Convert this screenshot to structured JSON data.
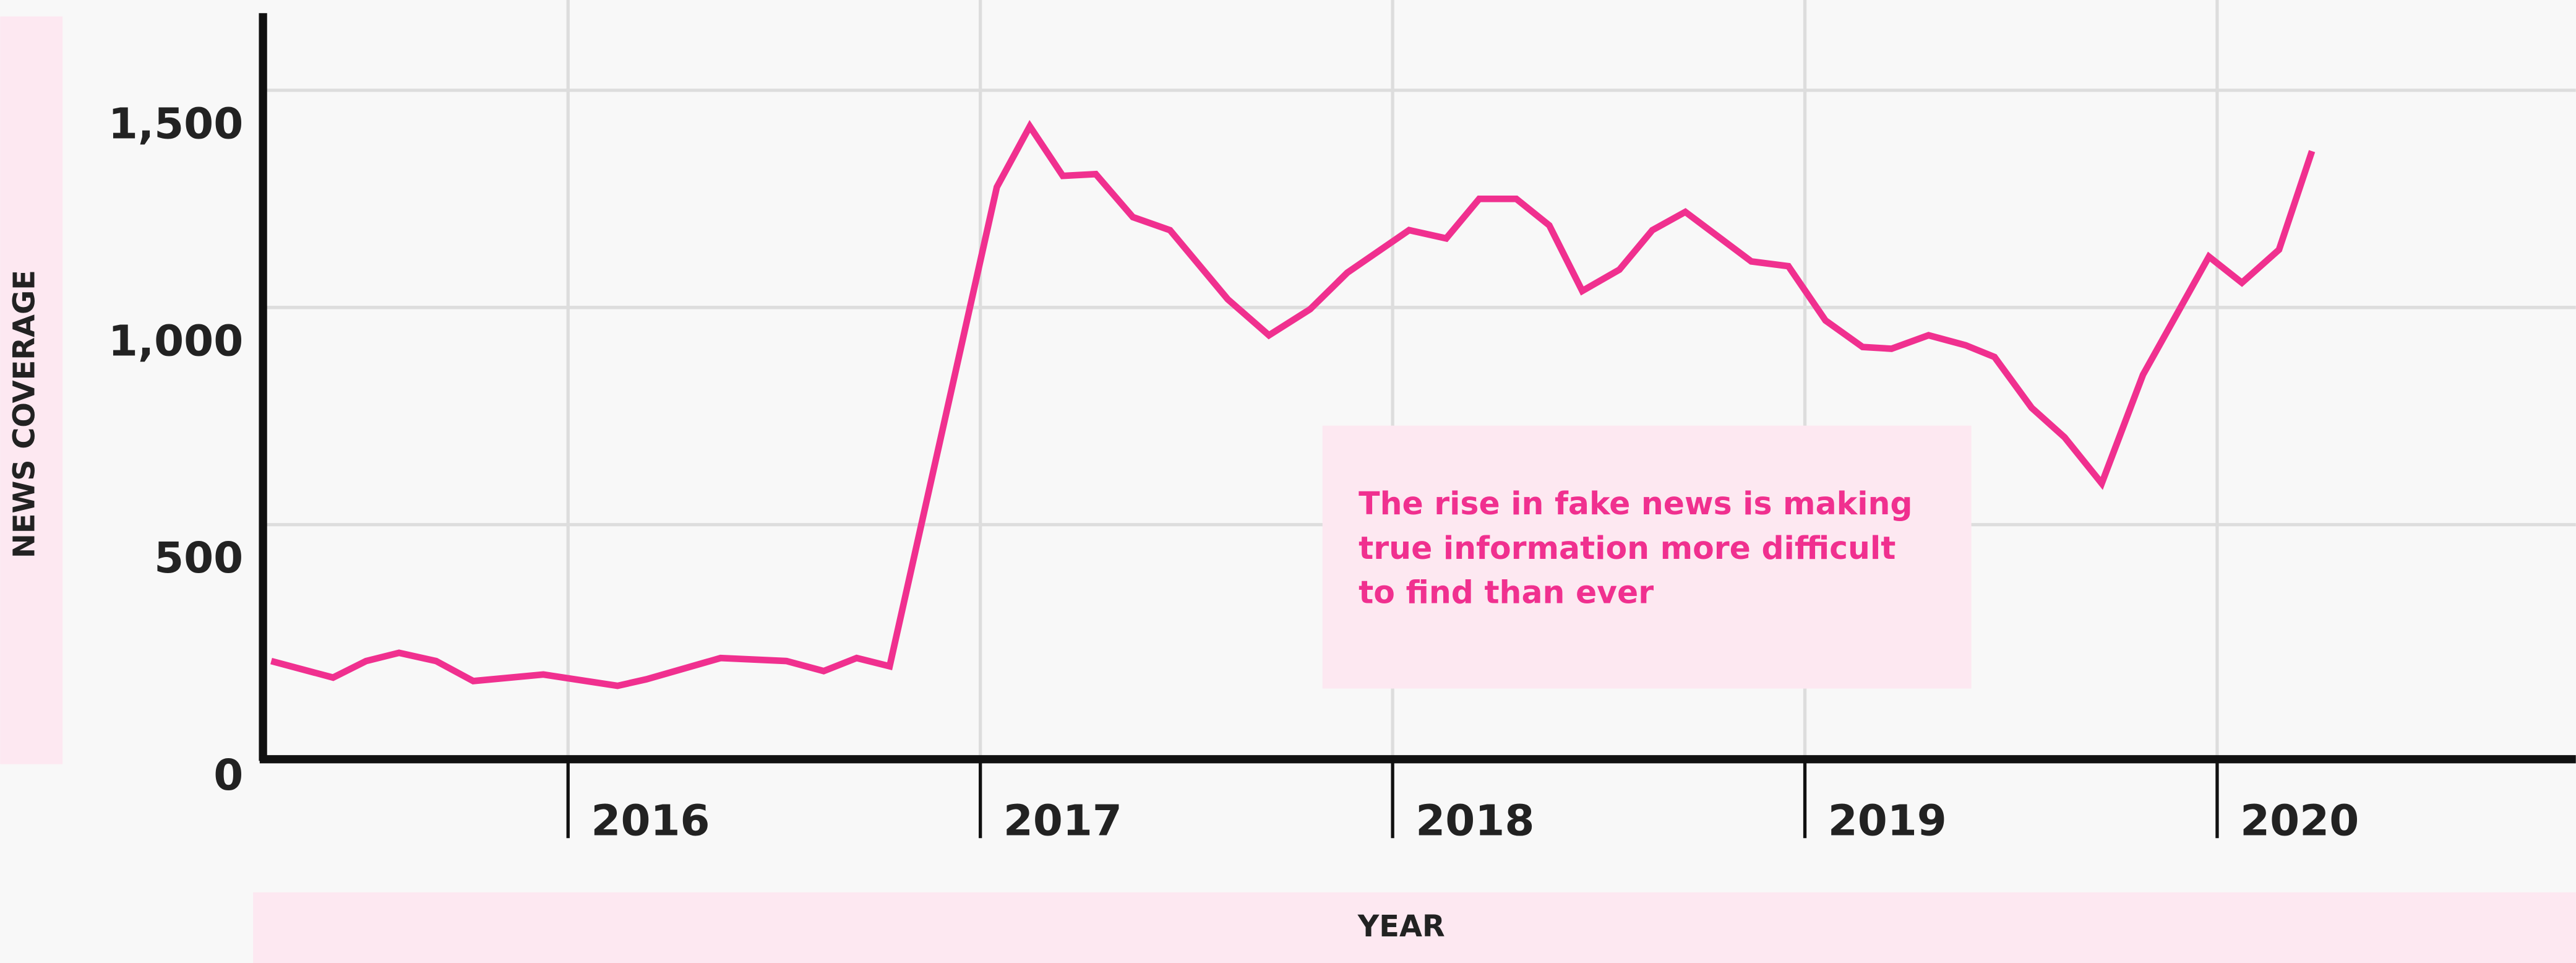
{
  "chart_data": {
    "type": "line",
    "xlabel": "YEAR",
    "ylabel": "NEWS COVERAGE",
    "annotation": "The rise in fake news is making true information more difficult to find than ever",
    "xlim": [
      2015.26,
      2020.87
    ],
    "xticks": [
      2016,
      2017,
      2018,
      2019,
      2020
    ],
    "ylim": [
      -40,
      1670
    ],
    "yticks": [
      0,
      {
        "value": 500,
        "label": "500"
      },
      {
        "value": 1000,
        "label": "1,000"
      },
      {
        "value": 1500,
        "label": "1,500"
      }
    ],
    "grid": true,
    "series": [
      {
        "color": "#f0308f",
        "x": [
          2015.28,
          2015.43,
          2015.51,
          2015.59,
          2015.68,
          2015.77,
          2015.94,
          2016.12,
          2016.19,
          2016.37,
          2016.53,
          2016.62,
          2016.7,
          2016.78,
          2017.04,
          2017.12,
          2017.2,
          2017.28,
          2017.37,
          2017.46,
          2017.6,
          2017.7,
          2017.8,
          2017.89,
          2018.04,
          2018.13,
          2018.21,
          2018.3,
          2018.38,
          2018.46,
          2018.55,
          2018.63,
          2018.71,
          2018.87,
          2018.96,
          2019.05,
          2019.14,
          2019.21,
          2019.3,
          2019.39,
          2019.46,
          2019.55,
          2019.63,
          2019.72,
          2019.82,
          2019.98,
          2020.06,
          2020.15,
          2020.23
        ],
        "values": [
          186,
          148,
          186,
          205,
          186,
          140,
          155,
          129,
          144,
          193,
          186,
          163,
          193,
          174,
          1277,
          1417,
          1303,
          1307,
          1208,
          1178,
          1019,
          936,
          996,
          1080,
          1178,
          1159,
          1250,
          1250,
          1189,
          1038,
          1087,
          1178,
          1220,
          1106,
          1095,
          970,
          909,
          905,
          936,
          913,
          886,
          769,
          701,
          595,
          845,
          1117,
          1057,
          1133,
          1360
        ]
      }
    ]
  }
}
